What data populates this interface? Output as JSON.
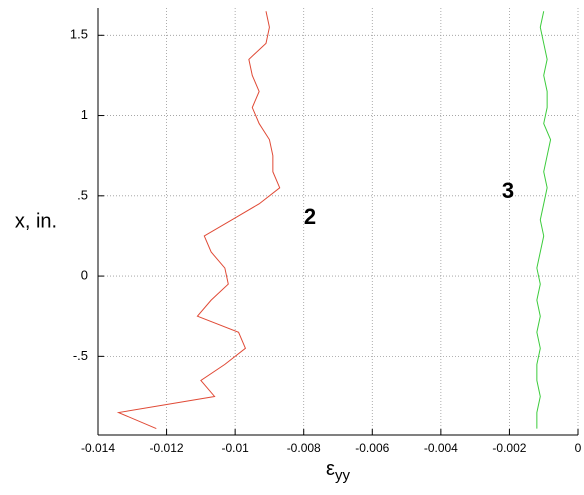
{
  "chart_data": {
    "type": "line",
    "x_label": "ε",
    "x_label_sub": "yy",
    "y_label": "x, in.",
    "x": [
      1.65,
      1.55,
      1.45,
      1.35,
      1.25,
      1.15,
      1.05,
      0.95,
      0.85,
      0.75,
      0.65,
      0.55,
      0.45,
      0.35,
      0.25,
      0.15,
      0.05,
      -0.05,
      -0.15,
      -0.25,
      -0.35,
      -0.45,
      -0.55,
      -0.65,
      -0.75,
      -0.85,
      -0.95
    ],
    "series": [
      {
        "name": "2",
        "color": "#e04a36",
        "values": [
          -0.0091,
          -0.009,
          -0.0091,
          -0.0096,
          -0.0095,
          -0.0093,
          -0.0095,
          -0.0093,
          -0.009,
          -0.0089,
          -0.0089,
          -0.0087,
          -0.0093,
          -0.0101,
          -0.0109,
          -0.0107,
          -0.0103,
          -0.0102,
          -0.0107,
          -0.0111,
          -0.0099,
          -0.0097,
          -0.0103,
          -0.011,
          -0.0106,
          -0.0134,
          -0.0123
        ]
      },
      {
        "name": "3",
        "color": "#3ccc3c",
        "values": [
          -0.001,
          -0.0011,
          -0.001,
          -0.0009,
          -0.001,
          -0.0009,
          -0.0009,
          -0.001,
          -0.0008,
          -0.0009,
          -0.001,
          -0.0009,
          -0.001,
          -0.0011,
          -0.001,
          -0.0011,
          -0.0012,
          -0.0011,
          -0.0012,
          -0.0011,
          -0.0012,
          -0.0011,
          -0.0012,
          -0.0012,
          -0.0011,
          -0.0012,
          -0.0012
        ]
      }
    ],
    "xlim": [
      -0.014,
      0
    ],
    "xticks": [
      -0.014,
      -0.012,
      -0.01,
      -0.008,
      -0.006,
      -0.004,
      -0.002,
      0
    ],
    "ylim": [
      -0.99,
      1.67
    ],
    "yticks": [
      {
        "value": -0.5,
        "label": "-.5"
      },
      0,
      {
        "value": 0.5,
        "label": ".5"
      },
      1,
      1.5
    ],
    "grid": true
  }
}
